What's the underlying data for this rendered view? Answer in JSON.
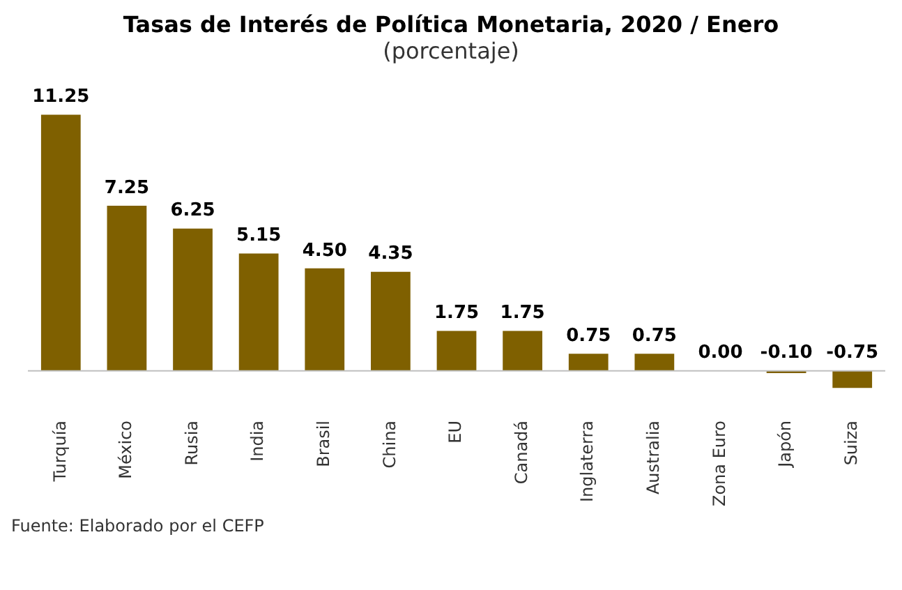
{
  "chart_data": {
    "type": "bar",
    "title": "Tasas de Interés de Política Monetaria, 2020 / Enero",
    "subtitle": "(porcentaje)",
    "categories": [
      "Turquía",
      "México",
      "Rusia",
      "India",
      "Brasil",
      "China",
      "EU",
      "Canadá",
      "Inglaterra",
      "Australia",
      "Zona Euro",
      "Japón",
      "Suiza"
    ],
    "values": [
      11.25,
      7.25,
      6.25,
      5.15,
      4.5,
      4.35,
      1.75,
      1.75,
      0.75,
      0.75,
      0,
      -0.1,
      -0.75
    ],
    "value_labels": [
      "11.25",
      "7.25",
      "6.25",
      "5.15",
      "4.50",
      "4.35",
      "1.75",
      "1.75",
      "0.75",
      "0.75",
      "0.00",
      "-0.10",
      "-0.75"
    ],
    "color": "#7f6000",
    "relative": false,
    "grid": false,
    "legend": false,
    "annotations": [
      "Fuente: Elaborado por el CEFP"
    ]
  }
}
